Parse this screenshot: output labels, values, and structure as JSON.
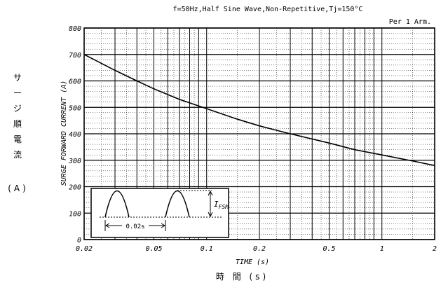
{
  "chart_data": {
    "type": "line",
    "title": "f=50Hz,Half Sine Wave,Non-Repetitive,Tj=150°C",
    "subtitle": "Per 1 Arm.",
    "xlabel": "TIME (s)",
    "xlabel_jp": "時 間 (s)",
    "ylabel": "SURGE FORWARD CURRENT (A)",
    "ylabel_jp": [
      "サ",
      "ー",
      "ジ",
      "順",
      "電",
      "流"
    ],
    "ylabel_jp_unit": "(A)",
    "x_scale": "log",
    "xlim": [
      0.02,
      2
    ],
    "ylim": [
      0,
      800
    ],
    "x_ticks": [
      0.02,
      0.05,
      0.1,
      0.2,
      0.5,
      1,
      2
    ],
    "x_tick_labels": [
      "0.02",
      "0.05",
      "0.1",
      "0.2",
      "0.5",
      "1",
      "2"
    ],
    "y_ticks": [
      0,
      100,
      200,
      300,
      400,
      500,
      600,
      700,
      800
    ],
    "y_tick_labels": [
      "0",
      "100",
      "200",
      "300",
      "400",
      "500",
      "600",
      "700",
      "800"
    ],
    "grid": true,
    "series": [
      {
        "x": [
          0.02,
          0.03,
          0.04,
          0.05,
          0.07,
          0.1,
          0.15,
          0.2,
          0.3,
          0.5,
          0.7,
          1,
          1.5,
          2
        ],
        "y": [
          700,
          640,
          600,
          570,
          530,
          495,
          455,
          430,
          400,
          365,
          340,
          320,
          297,
          280
        ]
      }
    ],
    "inset": {
      "interval_label": "0.02s",
      "peak_label": "I",
      "peak_subscript": "FSM"
    }
  }
}
